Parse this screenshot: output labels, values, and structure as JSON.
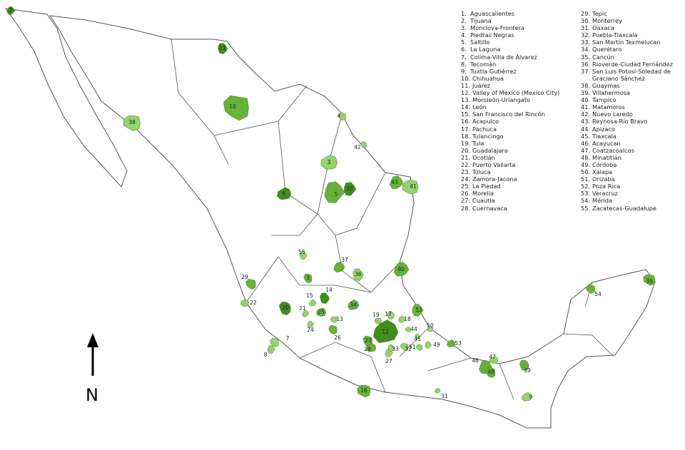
{
  "map": {
    "colors": {
      "dark": "#3f8f1f",
      "mid": "#66b23b",
      "light": "#93d36f",
      "border": "#555555",
      "land": "#ffffff"
    },
    "legend": [
      "Aguascalientes",
      "Tijuana",
      "Monclova-Frontera",
      "Piedras Negras",
      "Saltillo",
      "La Laguna",
      "Colima-Villa de Álvarez",
      "Tecomán",
      "Tuxtla Gutiérrez",
      "Chihuahua",
      "Juárez",
      "Valley of Mexico (Mexico City)",
      "Moroleón-Uriangato",
      "León",
      "San Francisco del Rincón",
      "Acapulco",
      "Pachuca",
      "Tulancingo",
      "Tula",
      "Guadalajara",
      "Ocotlán",
      "Puerto Vallarta",
      "Toluca",
      "Zamora-Jacona",
      "La Piedad",
      "Morelia",
      "Cuautla",
      "Cuernavaca",
      "Tepic",
      "Monterrey",
      "Oaxaca",
      "Puebla-Tlaxcala",
      "San Martín Texmelucan",
      "Querétaro",
      "Cancún",
      "Rioverde-Ciudad Fernández",
      "San Luis Potosí-Soledad de Graciano Sánchez",
      "Guaymas",
      "Villahermosa",
      "Tampico",
      "Matamoros",
      "Nuevo Laredo",
      "Reynosa-Río Bravo",
      "Apizaco",
      "Tlaxcala",
      "Acayucan",
      "Coatzacoalcos",
      "Minatitlán",
      "Córdoba",
      "Xalapa",
      "Orizaba",
      "Poza Rica",
      "Veracruz",
      "Mérida",
      "Zacatecas-Guadalupe"
    ],
    "north_label": "N",
    "north_icon": "arrow-up-icon"
  }
}
